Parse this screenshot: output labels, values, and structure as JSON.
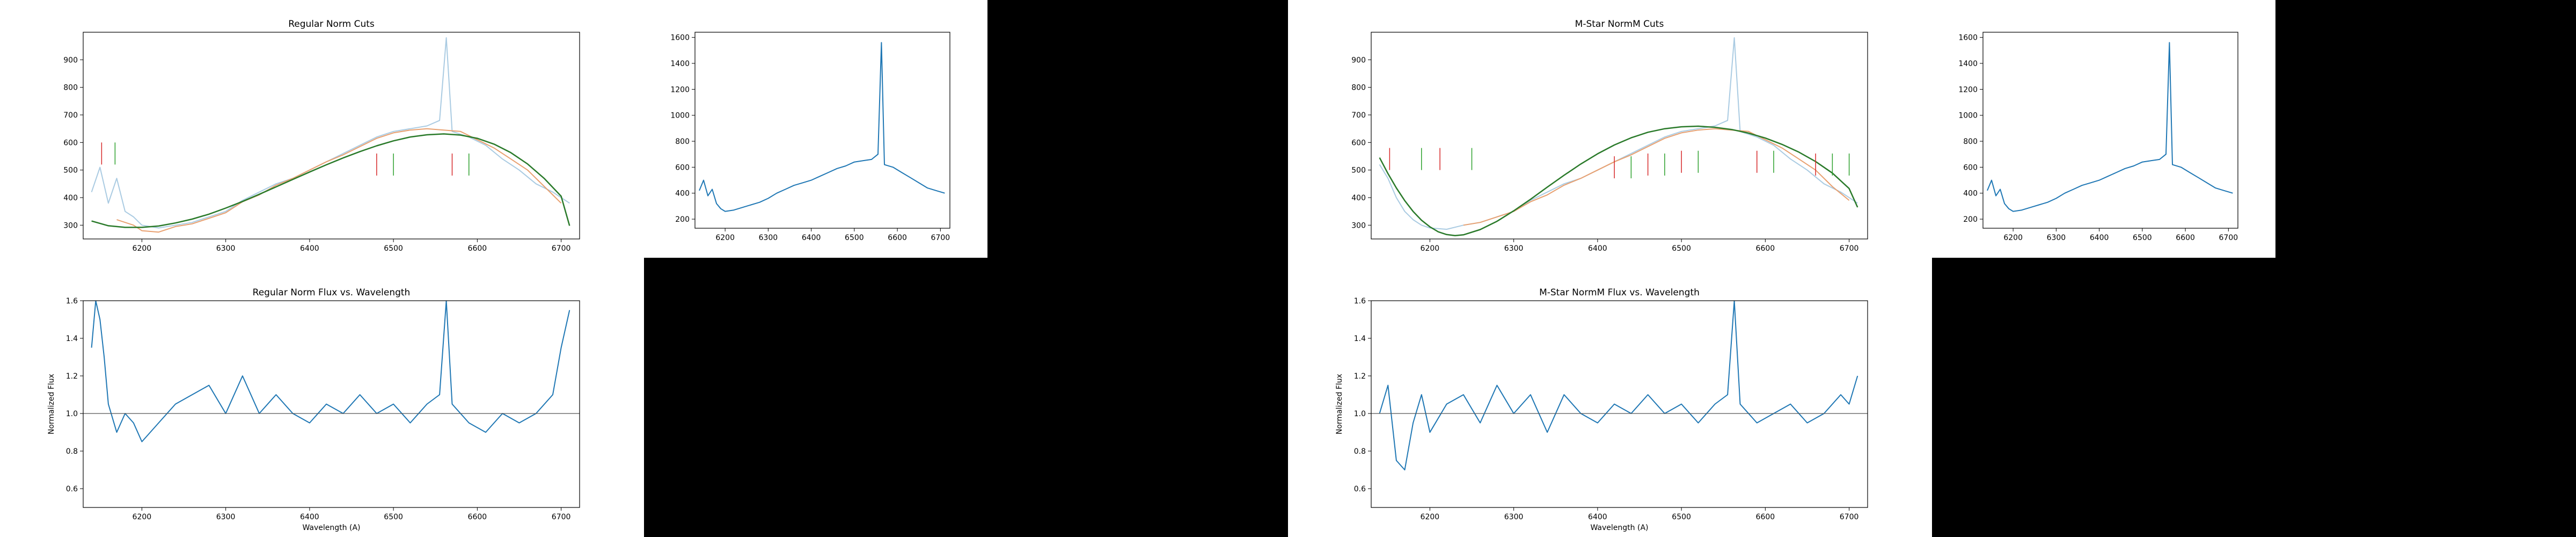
{
  "chart_data": [
    {
      "id": "regular-cuts",
      "type": "line",
      "title": "Regular Norm Cuts",
      "xlabel": "",
      "ylabel": "",
      "xlim": [
        6130,
        6722
      ],
      "ylim": [
        250,
        1000
      ],
      "xticks": [
        6200,
        6300,
        6400,
        6500,
        6600,
        6700
      ],
      "yticks": [
        300,
        400,
        500,
        600,
        700,
        800,
        900
      ],
      "series": [
        {
          "role": "raw-flux",
          "color": "#aacbe2",
          "x": [
            6140,
            6150,
            6160,
            6170,
            6180,
            6190,
            6200,
            6220,
            6240,
            6260,
            6280,
            6300,
            6320,
            6340,
            6360,
            6380,
            6400,
            6420,
            6440,
            6460,
            6480,
            6500,
            6520,
            6540,
            6555,
            6563,
            6570,
            6590,
            6610,
            6630,
            6650,
            6670,
            6690,
            6710
          ],
          "y": [
            420,
            510,
            380,
            470,
            350,
            330,
            300,
            290,
            300,
            310,
            330,
            350,
            390,
            420,
            450,
            470,
            500,
            530,
            560,
            590,
            620,
            640,
            650,
            660,
            680,
            980,
            640,
            620,
            590,
            540,
            500,
            450,
            420,
            380
          ]
        },
        {
          "role": "kept-points",
          "color": "#e8a070",
          "x": [
            6170,
            6190,
            6200,
            6220,
            6240,
            6260,
            6280,
            6300,
            6320,
            6340,
            6360,
            6380,
            6400,
            6420,
            6440,
            6460,
            6480,
            6500,
            6520,
            6540,
            6580,
            6600,
            6620,
            6640,
            6660,
            6680,
            6700
          ],
          "y": [
            320,
            300,
            280,
            275,
            295,
            305,
            325,
            345,
            385,
            410,
            445,
            470,
            500,
            530,
            555,
            585,
            615,
            635,
            645,
            650,
            640,
            610,
            580,
            540,
            500,
            440,
            380
          ]
        },
        {
          "role": "polynomial-fit",
          "color": "#2a7a2a",
          "x": [
            6140,
            6160,
            6180,
            6200,
            6220,
            6240,
            6260,
            6280,
            6300,
            6320,
            6340,
            6360,
            6380,
            6400,
            6420,
            6440,
            6460,
            6480,
            6500,
            6520,
            6540,
            6560,
            6580,
            6600,
            6620,
            6640,
            6660,
            6680,
            6700,
            6710
          ],
          "y": [
            315,
            298,
            292,
            292,
            297,
            308,
            322,
            340,
            362,
            386,
            412,
            439,
            466,
            493,
            519,
            544,
            567,
            588,
            606,
            620,
            628,
            631,
            627,
            615,
            594,
            563,
            522,
            469,
            405,
            298
          ]
        }
      ],
      "markers": [
        {
          "x": 6152,
          "y0": 520,
          "y1": 600,
          "color": "#d62728"
        },
        {
          "x": 6168,
          "y0": 520,
          "y1": 600,
          "color": "#2ca02c"
        },
        {
          "x": 6480,
          "y0": 480,
          "y1": 560,
          "color": "#d62728"
        },
        {
          "x": 6500,
          "y0": 480,
          "y1": 560,
          "color": "#2ca02c"
        },
        {
          "x": 6570,
          "y0": 480,
          "y1": 560,
          "color": "#d62728"
        },
        {
          "x": 6590,
          "y0": 480,
          "y1": 560,
          "color": "#2ca02c"
        }
      ]
    },
    {
      "id": "regular-raw",
      "type": "line",
      "title": "",
      "xlabel": "",
      "ylabel": "",
      "xlim": [
        6130,
        6722
      ],
      "ylim": [
        130,
        1640
      ],
      "xticks": [
        6200,
        6300,
        6400,
        6500,
        6600,
        6700
      ],
      "yticks": [
        200,
        400,
        600,
        800,
        1000,
        1200,
        1400,
        1600
      ],
      "series": [
        {
          "role": "raw-flux",
          "color": "#1f77b4",
          "x": [
            6140,
            6150,
            6160,
            6170,
            6180,
            6190,
            6200,
            6220,
            6240,
            6260,
            6280,
            6300,
            6320,
            6340,
            6360,
            6380,
            6400,
            6420,
            6440,
            6460,
            6480,
            6500,
            6520,
            6540,
            6555,
            6563,
            6570,
            6590,
            6610,
            6630,
            6650,
            6670,
            6690,
            6710
          ],
          "y": [
            420,
            500,
            380,
            430,
            320,
            280,
            260,
            270,
            290,
            310,
            330,
            360,
            400,
            430,
            460,
            480,
            500,
            530,
            560,
            590,
            610,
            640,
            650,
            660,
            700,
            1560,
            620,
            600,
            560,
            520,
            480,
            440,
            420,
            400
          ]
        }
      ],
      "markers": []
    },
    {
      "id": "regular-norm",
      "type": "line",
      "title": "Regular Norm Flux vs. Wavelength",
      "xlabel": "Wavelength (A)",
      "ylabel": "Normalized Flux",
      "xlim": [
        6130,
        6722
      ],
      "ylim": [
        0.5,
        1.6
      ],
      "xticks": [
        6200,
        6300,
        6400,
        6500,
        6600,
        6700
      ],
      "yticks": [
        0.6,
        0.8,
        1.0,
        1.2,
        1.4,
        1.6
      ],
      "hline": 1.0,
      "series": [
        {
          "role": "normalized-flux",
          "color": "#1f77b4",
          "x": [
            6140,
            6145,
            6150,
            6155,
            6160,
            6170,
            6180,
            6190,
            6200,
            6220,
            6240,
            6260,
            6280,
            6300,
            6320,
            6340,
            6360,
            6380,
            6400,
            6420,
            6440,
            6460,
            6480,
            6500,
            6520,
            6540,
            6555,
            6563,
            6570,
            6590,
            6610,
            6630,
            6650,
            6670,
            6690,
            6700,
            6710
          ],
          "y": [
            1.35,
            1.6,
            1.5,
            1.3,
            1.05,
            0.9,
            1.0,
            0.95,
            0.85,
            0.95,
            1.05,
            1.1,
            1.15,
            1.0,
            1.2,
            1.0,
            1.1,
            1.0,
            0.95,
            1.05,
            1.0,
            1.1,
            1.0,
            1.05,
            0.95,
            1.05,
            1.1,
            1.6,
            1.05,
            0.95,
            0.9,
            1.0,
            0.95,
            1.0,
            1.1,
            1.35,
            1.55
          ]
        }
      ],
      "markers": []
    },
    {
      "id": "mstar-cuts",
      "type": "line",
      "title": "M-Star NormM Cuts",
      "xlabel": "",
      "ylabel": "",
      "xlim": [
        6130,
        6722
      ],
      "ylim": [
        250,
        1000
      ],
      "xticks": [
        6200,
        6300,
        6400,
        6500,
        6600,
        6700
      ],
      "yticks": [
        300,
        400,
        500,
        600,
        700,
        800,
        900
      ],
      "series": [
        {
          "role": "raw-flux",
          "color": "#aacbe2",
          "x": [
            6140,
            6150,
            6160,
            6170,
            6180,
            6190,
            6200,
            6220,
            6240,
            6260,
            6280,
            6300,
            6320,
            6340,
            6360,
            6380,
            6400,
            6420,
            6440,
            6460,
            6480,
            6500,
            6520,
            6540,
            6555,
            6563,
            6570,
            6590,
            6610,
            6630,
            6650,
            6670,
            6690,
            6710
          ],
          "y": [
            520,
            470,
            400,
            350,
            320,
            300,
            290,
            285,
            300,
            310,
            330,
            350,
            390,
            420,
            450,
            470,
            500,
            530,
            560,
            590,
            620,
            640,
            650,
            660,
            680,
            980,
            640,
            620,
            590,
            540,
            500,
            450,
            420,
            380
          ]
        },
        {
          "role": "kept-points",
          "color": "#e8a070",
          "x": [
            6240,
            6260,
            6280,
            6300,
            6320,
            6340,
            6360,
            6380,
            6400,
            6420,
            6440,
            6460,
            6480,
            6500,
            6520,
            6540,
            6580,
            6600,
            6620,
            6640,
            6660,
            6680,
            6700
          ],
          "y": [
            300,
            310,
            330,
            350,
            385,
            410,
            445,
            470,
            500,
            530,
            555,
            585,
            615,
            635,
            645,
            650,
            640,
            610,
            580,
            540,
            500,
            440,
            390
          ]
        },
        {
          "role": "polynomial-fit",
          "color": "#2a7a2a",
          "x": [
            6140,
            6150,
            6160,
            6170,
            6180,
            6190,
            6200,
            6210,
            6220,
            6230,
            6240,
            6260,
            6280,
            6300,
            6320,
            6340,
            6360,
            6380,
            6400,
            6420,
            6440,
            6460,
            6480,
            6500,
            6520,
            6540,
            6560,
            6580,
            6600,
            6620,
            6640,
            6660,
            6680,
            6700,
            6710
          ],
          "y": [
            545,
            487,
            435,
            389,
            350,
            318,
            294,
            276,
            266,
            262,
            265,
            284,
            314,
            352,
            394,
            438,
            481,
            522,
            559,
            591,
            617,
            637,
            650,
            657,
            659,
            655,
            647,
            634,
            616,
            593,
            565,
            531,
            489,
            433,
            365
          ]
        }
      ],
      "markers": [
        {
          "x": 6152,
          "y0": 500,
          "y1": 580,
          "color": "#d62728"
        },
        {
          "x": 6190,
          "y0": 500,
          "y1": 580,
          "color": "#2ca02c"
        },
        {
          "x": 6212,
          "y0": 500,
          "y1": 580,
          "color": "#d62728"
        },
        {
          "x": 6250,
          "y0": 500,
          "y1": 580,
          "color": "#2ca02c"
        },
        {
          "x": 6420,
          "y0": 470,
          "y1": 550,
          "color": "#d62728"
        },
        {
          "x": 6440,
          "y0": 470,
          "y1": 550,
          "color": "#2ca02c"
        },
        {
          "x": 6460,
          "y0": 480,
          "y1": 560,
          "color": "#d62728"
        },
        {
          "x": 6480,
          "y0": 480,
          "y1": 560,
          "color": "#2ca02c"
        },
        {
          "x": 6500,
          "y0": 490,
          "y1": 570,
          "color": "#d62728"
        },
        {
          "x": 6520,
          "y0": 490,
          "y1": 570,
          "color": "#2ca02c"
        },
        {
          "x": 6590,
          "y0": 490,
          "y1": 570,
          "color": "#d62728"
        },
        {
          "x": 6610,
          "y0": 490,
          "y1": 570,
          "color": "#2ca02c"
        },
        {
          "x": 6660,
          "y0": 480,
          "y1": 560,
          "color": "#d62728"
        },
        {
          "x": 6680,
          "y0": 480,
          "y1": 560,
          "color": "#2ca02c"
        },
        {
          "x": 6700,
          "y0": 480,
          "y1": 560,
          "color": "#2ca02c"
        }
      ]
    },
    {
      "id": "mstar-raw",
      "type": "line",
      "title": "",
      "xlabel": "",
      "ylabel": "",
      "xlim": [
        6130,
        6722
      ],
      "ylim": [
        130,
        1640
      ],
      "xticks": [
        6200,
        6300,
        6400,
        6500,
        6600,
        6700
      ],
      "yticks": [
        200,
        400,
        600,
        800,
        1000,
        1200,
        1400,
        1600
      ],
      "series": [
        {
          "role": "raw-flux",
          "color": "#1f77b4",
          "x": [
            6140,
            6150,
            6160,
            6170,
            6180,
            6190,
            6200,
            6220,
            6240,
            6260,
            6280,
            6300,
            6320,
            6340,
            6360,
            6380,
            6400,
            6420,
            6440,
            6460,
            6480,
            6500,
            6520,
            6540,
            6555,
            6563,
            6570,
            6590,
            6610,
            6630,
            6650,
            6670,
            6690,
            6710
          ],
          "y": [
            420,
            500,
            380,
            430,
            320,
            280,
            260,
            270,
            290,
            310,
            330,
            360,
            400,
            430,
            460,
            480,
            500,
            530,
            560,
            590,
            610,
            640,
            650,
            660,
            700,
            1560,
            620,
            600,
            560,
            520,
            480,
            440,
            420,
            400
          ]
        }
      ],
      "markers": []
    },
    {
      "id": "mstar-norm",
      "type": "line",
      "title": "M-Star NormM Flux vs. Wavelength",
      "xlabel": "Wavelength (A)",
      "ylabel": "Normalized Flux",
      "xlim": [
        6130,
        6722
      ],
      "ylim": [
        0.5,
        1.6
      ],
      "xticks": [
        6200,
        6300,
        6400,
        6500,
        6600,
        6700
      ],
      "yticks": [
        0.6,
        0.8,
        1.0,
        1.2,
        1.4,
        1.6
      ],
      "hline": 1.0,
      "series": [
        {
          "role": "normalized-flux",
          "color": "#1f77b4",
          "x": [
            6140,
            6150,
            6160,
            6170,
            6180,
            6190,
            6200,
            6220,
            6240,
            6260,
            6280,
            6300,
            6320,
            6340,
            6360,
            6380,
            6400,
            6420,
            6440,
            6460,
            6480,
            6500,
            6520,
            6540,
            6555,
            6563,
            6570,
            6590,
            6610,
            6630,
            6650,
            6670,
            6690,
            6700,
            6710
          ],
          "y": [
            1.0,
            1.15,
            0.75,
            0.7,
            0.95,
            1.1,
            0.9,
            1.05,
            1.1,
            0.95,
            1.15,
            1.0,
            1.1,
            0.9,
            1.1,
            1.0,
            0.95,
            1.05,
            1.0,
            1.1,
            1.0,
            1.05,
            0.95,
            1.05,
            1.1,
            1.6,
            1.05,
            0.95,
            1.0,
            1.05,
            0.95,
            1.0,
            1.1,
            1.05,
            1.2
          ]
        }
      ],
      "markers": []
    }
  ]
}
